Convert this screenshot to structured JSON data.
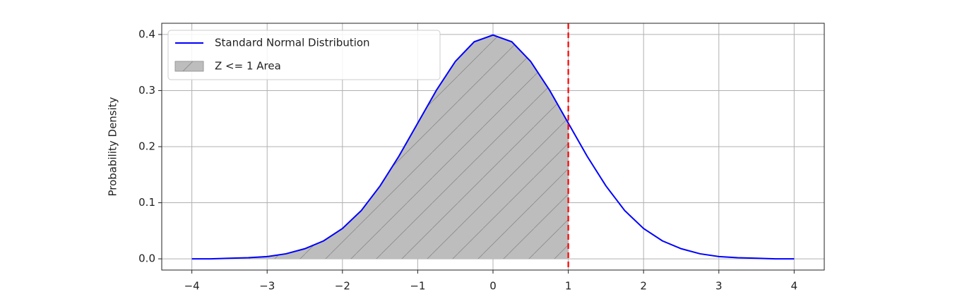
{
  "chart_data": {
    "type": "line",
    "y_label": "Probability Density",
    "x": [
      -4,
      -3.75,
      -3.5,
      -3.25,
      -3,
      -2.75,
      -2.5,
      -2.25,
      -2,
      -1.75,
      -1.5,
      -1.25,
      -1,
      -0.75,
      -0.5,
      -0.25,
      0,
      0.25,
      0.5,
      0.75,
      1,
      1.25,
      1.5,
      1.75,
      2,
      2.25,
      2.5,
      2.75,
      3,
      3.25,
      3.5,
      3.75,
      4
    ],
    "series": [
      {
        "name": "Standard Normal Distribution",
        "color": "#0000ff",
        "fill": false,
        "values": [
          0.0,
          0.0,
          0.001,
          0.002,
          0.004,
          0.009,
          0.018,
          0.032,
          0.054,
          0.086,
          0.13,
          0.183,
          0.242,
          0.301,
          0.352,
          0.387,
          0.399,
          0.387,
          0.352,
          0.301,
          0.242,
          0.183,
          0.13,
          0.086,
          0.054,
          0.032,
          0.018,
          0.009,
          0.004,
          0.002,
          0.001,
          0.0,
          0.0
        ]
      },
      {
        "name": "Z <= 1 Area",
        "color": "#bdbdbd",
        "fill": true,
        "hatch": true,
        "values": [
          0.0,
          0.0,
          0.001,
          0.002,
          0.004,
          0.009,
          0.018,
          0.032,
          0.054,
          0.086,
          0.13,
          0.183,
          0.242,
          0.301,
          0.352,
          0.387,
          0.399,
          0.387,
          0.352,
          0.301,
          0.242,
          null,
          null,
          null,
          null,
          null,
          null,
          null,
          null,
          null,
          null,
          null,
          null
        ]
      }
    ],
    "vline_x": 1,
    "vline_color": "#ff0000",
    "xlim": [
      -4.4,
      4.4
    ],
    "xticks": [
      {
        "value": -4,
        "label": "−4"
      },
      {
        "value": -3,
        "label": "−3"
      },
      {
        "value": -2,
        "label": "−2"
      },
      {
        "value": -1,
        "label": "−1"
      },
      0,
      1,
      2,
      3,
      4
    ],
    "ylim": [
      -0.02,
      0.42
    ],
    "yticks": [
      {
        "value": 0,
        "label": "0.0"
      },
      0.1,
      0.2,
      0.3,
      0.4
    ],
    "grid": true,
    "legend": "upper left"
  }
}
